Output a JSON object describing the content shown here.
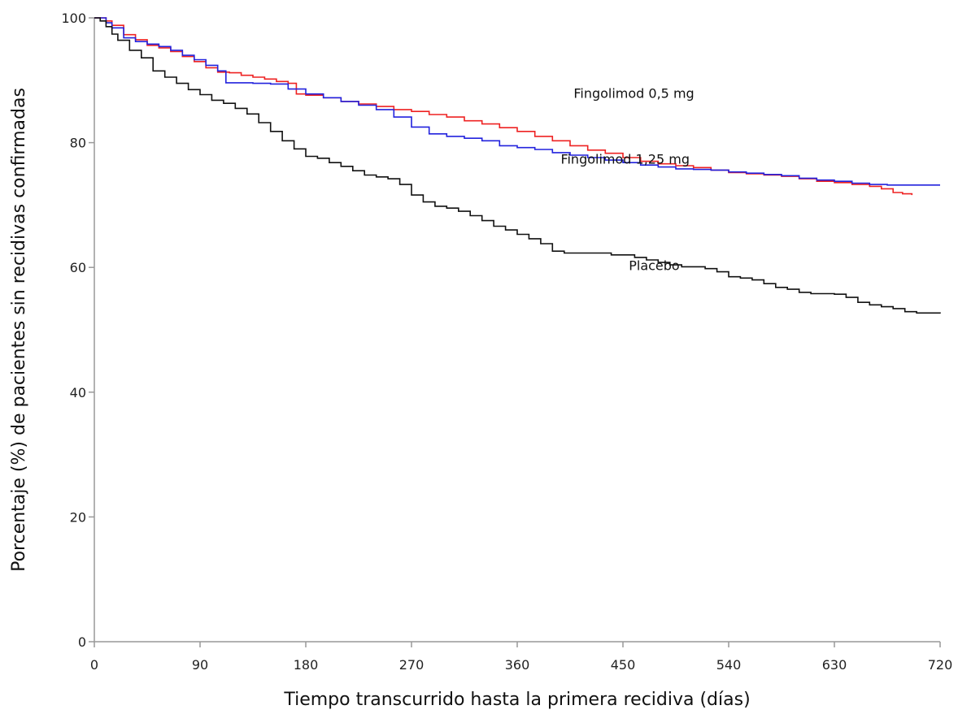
{
  "chart_data": {
    "type": "line",
    "step": true,
    "xlabel": "Tiempo transcurrido hasta la primera recidiva (días)",
    "ylabel": "Porcentaje (%) de pacientes sin recidivas confirmadas",
    "xlim": [
      0,
      720
    ],
    "ylim": [
      0,
      100
    ],
    "xticks": [
      0,
      90,
      180,
      270,
      360,
      450,
      540,
      630,
      720
    ],
    "yticks": [
      0,
      20,
      40,
      60,
      80,
      100
    ],
    "grid": false,
    "legend": "none",
    "series": [
      {
        "name": "Fingolimod 0,5 mg",
        "color": "#ee2222",
        "points": [
          [
            0,
            100
          ],
          [
            6,
            100
          ],
          [
            10,
            99.5
          ],
          [
            15,
            98.8
          ],
          [
            25,
            97.3
          ],
          [
            35,
            96.5
          ],
          [
            45,
            95.6
          ],
          [
            55,
            95.2
          ],
          [
            65,
            94.6
          ],
          [
            75,
            93.8
          ],
          [
            85,
            93
          ],
          [
            95,
            92
          ],
          [
            105,
            91.3
          ],
          [
            115,
            91.2
          ],
          [
            125,
            90.8
          ],
          [
            135,
            90.5
          ],
          [
            145,
            90.2
          ],
          [
            155,
            89.8
          ],
          [
            165,
            89.5
          ],
          [
            172,
            87.8
          ],
          [
            180,
            87.6
          ],
          [
            195,
            87.2
          ],
          [
            210,
            86.6
          ],
          [
            225,
            86.2
          ],
          [
            240,
            85.8
          ],
          [
            255,
            85.3
          ],
          [
            270,
            85
          ],
          [
            285,
            84.5
          ],
          [
            300,
            84.1
          ],
          [
            315,
            83.5
          ],
          [
            330,
            83
          ],
          [
            345,
            82.4
          ],
          [
            360,
            81.8
          ],
          [
            375,
            81
          ],
          [
            390,
            80.3
          ],
          [
            405,
            79.5
          ],
          [
            420,
            78.8
          ],
          [
            435,
            78.3
          ],
          [
            450,
            77.6
          ],
          [
            465,
            77
          ],
          [
            480,
            76.6
          ],
          [
            495,
            76.3
          ],
          [
            510,
            76
          ],
          [
            525,
            75.6
          ],
          [
            540,
            75.2
          ],
          [
            555,
            75
          ],
          [
            570,
            74.8
          ],
          [
            585,
            74.6
          ],
          [
            600,
            74.2
          ],
          [
            615,
            73.8
          ],
          [
            630,
            73.6
          ],
          [
            645,
            73.3
          ],
          [
            660,
            73
          ],
          [
            670,
            72.6
          ],
          [
            680,
            72
          ],
          [
            688,
            71.8
          ],
          [
            696,
            71.6
          ]
        ]
      },
      {
        "name": "Fingolimod 1,25 mg",
        "color": "#2222dd",
        "points": [
          [
            0,
            100
          ],
          [
            6,
            100
          ],
          [
            10,
            99.2
          ],
          [
            15,
            98.4
          ],
          [
            25,
            96.8
          ],
          [
            35,
            96.2
          ],
          [
            45,
            95.8
          ],
          [
            55,
            95.4
          ],
          [
            65,
            94.8
          ],
          [
            75,
            94
          ],
          [
            85,
            93.3
          ],
          [
            95,
            92.4
          ],
          [
            105,
            91.5
          ],
          [
            112,
            89.6
          ],
          [
            120,
            89.6
          ],
          [
            135,
            89.5
          ],
          [
            150,
            89.4
          ],
          [
            165,
            88.6
          ],
          [
            180,
            87.8
          ],
          [
            195,
            87.2
          ],
          [
            210,
            86.6
          ],
          [
            225,
            86
          ],
          [
            240,
            85.3
          ],
          [
            255,
            84.1
          ],
          [
            270,
            82.5
          ],
          [
            285,
            81.4
          ],
          [
            300,
            81
          ],
          [
            315,
            80.7
          ],
          [
            330,
            80.3
          ],
          [
            345,
            79.5
          ],
          [
            360,
            79.2
          ],
          [
            375,
            78.9
          ],
          [
            390,
            78.4
          ],
          [
            405,
            78
          ],
          [
            420,
            77.6
          ],
          [
            435,
            77.2
          ],
          [
            450,
            76.8
          ],
          [
            465,
            76.4
          ],
          [
            480,
            76.1
          ],
          [
            495,
            75.8
          ],
          [
            510,
            75.7
          ],
          [
            525,
            75.6
          ],
          [
            540,
            75.3
          ],
          [
            555,
            75.1
          ],
          [
            570,
            74.9
          ],
          [
            585,
            74.7
          ],
          [
            600,
            74.3
          ],
          [
            615,
            74
          ],
          [
            630,
            73.8
          ],
          [
            645,
            73.5
          ],
          [
            660,
            73.3
          ],
          [
            675,
            73.2
          ],
          [
            690,
            73.2
          ],
          [
            720,
            73.2
          ]
        ]
      },
      {
        "name": "Placebo",
        "color": "#111111",
        "points": [
          [
            0,
            100
          ],
          [
            5,
            99.5
          ],
          [
            10,
            98.6
          ],
          [
            15,
            97.4
          ],
          [
            20,
            96.4
          ],
          [
            30,
            94.8
          ],
          [
            40,
            93.6
          ],
          [
            50,
            91.5
          ],
          [
            60,
            90.5
          ],
          [
            70,
            89.5
          ],
          [
            80,
            88.5
          ],
          [
            90,
            87.7
          ],
          [
            100,
            86.8
          ],
          [
            110,
            86.3
          ],
          [
            120,
            85.5
          ],
          [
            130,
            84.6
          ],
          [
            140,
            83.2
          ],
          [
            150,
            81.8
          ],
          [
            160,
            80.3
          ],
          [
            170,
            79
          ],
          [
            180,
            77.8
          ],
          [
            190,
            77.5
          ],
          [
            200,
            76.8
          ],
          [
            210,
            76.2
          ],
          [
            220,
            75.5
          ],
          [
            230,
            74.8
          ],
          [
            240,
            74.5
          ],
          [
            250,
            74.2
          ],
          [
            260,
            73.3
          ],
          [
            270,
            71.6
          ],
          [
            280,
            70.5
          ],
          [
            290,
            69.8
          ],
          [
            300,
            69.5
          ],
          [
            310,
            69
          ],
          [
            320,
            68.3
          ],
          [
            330,
            67.5
          ],
          [
            340,
            66.6
          ],
          [
            350,
            66
          ],
          [
            360,
            65.3
          ],
          [
            370,
            64.6
          ],
          [
            380,
            63.8
          ],
          [
            390,
            62.6
          ],
          [
            400,
            62.3
          ],
          [
            420,
            62.3
          ],
          [
            440,
            62
          ],
          [
            460,
            61.6
          ],
          [
            470,
            61.2
          ],
          [
            480,
            60.8
          ],
          [
            490,
            60.4
          ],
          [
            500,
            60.1
          ],
          [
            520,
            59.8
          ],
          [
            530,
            59.3
          ],
          [
            540,
            58.5
          ],
          [
            550,
            58.3
          ],
          [
            560,
            58
          ],
          [
            570,
            57.4
          ],
          [
            580,
            56.8
          ],
          [
            590,
            56.5
          ],
          [
            600,
            56
          ],
          [
            610,
            55.8
          ],
          [
            620,
            55.8
          ],
          [
            630,
            55.7
          ],
          [
            640,
            55.2
          ],
          [
            650,
            54.4
          ],
          [
            660,
            54
          ],
          [
            670,
            53.7
          ],
          [
            680,
            53.4
          ],
          [
            690,
            52.9
          ],
          [
            700,
            52.7
          ],
          [
            720,
            52.6
          ]
        ]
      }
    ],
    "annotations": [
      {
        "text": "Fingolimod 0,5 mg",
        "x": 408,
        "y": 87.2
      },
      {
        "text": "Fingolimod 1,25 mg",
        "x": 397,
        "y": 76.6
      },
      {
        "text": "Placebo",
        "x": 455,
        "y": 59.6
      }
    ]
  }
}
